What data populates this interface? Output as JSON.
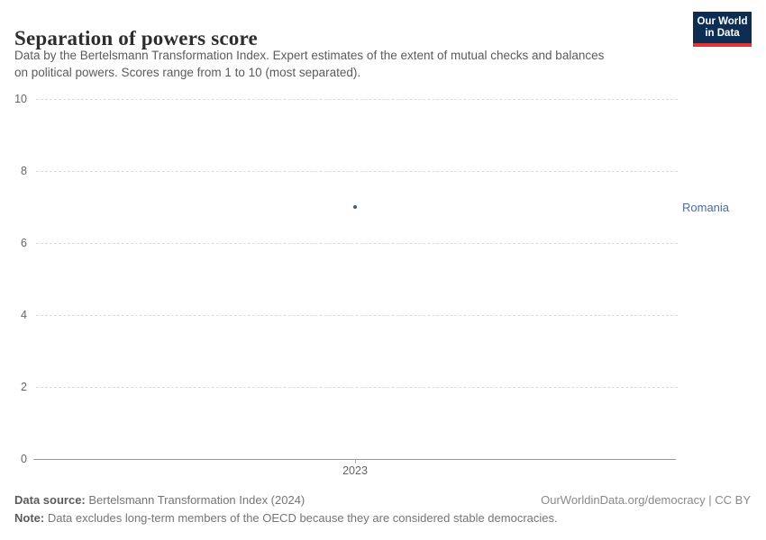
{
  "header": {
    "title": "Separation of powers score",
    "subtitle_lines": [
      "Data by the Bertelsmann Transformation Index. Expert estimates of the extent of mutual checks and balances",
      "on political powers. Scores range from 1 to 10 (most separated)."
    ],
    "logo": {
      "line1": "Our World",
      "line2": "in Data",
      "bg_color": "#0c2d54",
      "accent_color": "#e03531"
    }
  },
  "chart": {
    "y_axis": {
      "ticks": [
        "10",
        "8",
        "6",
        "4",
        "2",
        "0"
      ]
    },
    "x_axis": {
      "ticks": [
        "2023"
      ]
    },
    "entity_label": "Romania",
    "point_color": "#3d5a8f",
    "entity_label_color": "#4d6ba5",
    "gridline_color": "#dcdcdc",
    "axis_line_color": "#999999"
  },
  "chart_data": {
    "type": "scatter",
    "title": "Separation of powers score",
    "subtitle": "Data by the Bertelsmann Transformation Index. Expert estimates of the extent of mutual checks and balances on political powers. Scores range from 1 to 10 (most separated).",
    "series": [
      {
        "name": "Romania",
        "x": [
          2023
        ],
        "y": [
          7
        ]
      }
    ],
    "xlabel": "",
    "ylabel": "",
    "ylim": [
      0,
      10
    ],
    "yticks": [
      0,
      2,
      4,
      6,
      8,
      10
    ],
    "xticks": [
      2023
    ],
    "grid": "horizontal-dashed",
    "legend_position": "label-right-of-plot"
  },
  "footer": {
    "source_label": "Data source:",
    "source_text": " Bertelsmann Transformation Index (2024)",
    "note_label": "Note:",
    "note_text": " Data excludes long-term members of the OECD because they are considered stable democracies.",
    "link_text": "OurWorldinData.org/democracy | CC BY"
  }
}
